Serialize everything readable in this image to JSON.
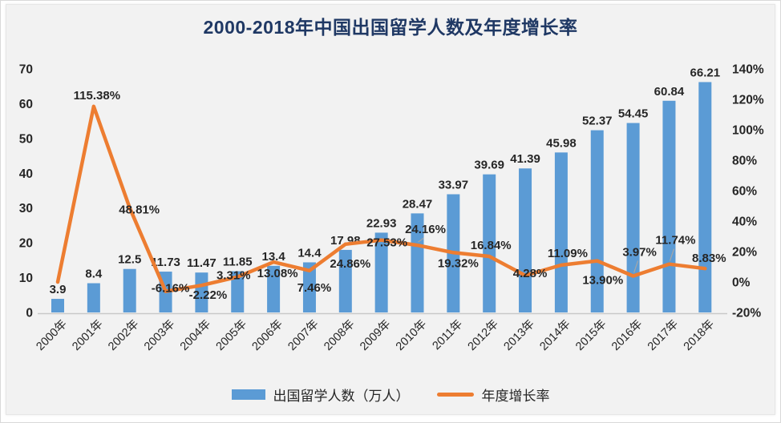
{
  "title": "2000-2018年中国出国留学人数及年度增长率",
  "legend": {
    "bars_label": "出国留学人数（万人）",
    "line_label": "年度增长率"
  },
  "colors": {
    "bar": "#5B9BD5",
    "line": "#ED7D31",
    "title": "#1F3864",
    "background": "#F2F2F2",
    "label_text": "#262626",
    "axis_line": "#C9C9C9",
    "leader_line": "#A6A6A6"
  },
  "chart_data": {
    "type": "combo (bar + line)",
    "title": "2000-2018年中国出国留学人数及年度增长率",
    "categories": [
      "2000年",
      "2001年",
      "2002年",
      "2003年",
      "2004年",
      "2005年",
      "2006年",
      "2007年",
      "2008年",
      "2009年",
      "2010年",
      "2011年",
      "2012年",
      "2013年",
      "2014年",
      "2015年",
      "2016年",
      "2017年",
      "2018年"
    ],
    "series": [
      {
        "name": "出国留学人数（万人）",
        "type": "bar",
        "axis": "left",
        "color": "#5B9BD5",
        "values": [
          3.9,
          8.4,
          12.5,
          11.73,
          11.47,
          11.85,
          13.4,
          14.4,
          17.98,
          22.93,
          28.47,
          33.97,
          39.69,
          41.39,
          45.98,
          52.37,
          54.45,
          60.84,
          66.21
        ],
        "labels": [
          "3.9",
          "8.4",
          "12.5",
          "11.73",
          "11.47",
          "11.85",
          "13.4",
          "14.4",
          "17.98",
          "22.93",
          "28.47",
          "33.97",
          "39.69",
          "41.39",
          "45.98",
          "52.37",
          "54.45",
          "60.84",
          "66.21"
        ]
      },
      {
        "name": "年度增长率",
        "type": "line",
        "axis": "right",
        "color": "#ED7D31",
        "values_percent": [
          0,
          115.38,
          48.81,
          -6.16,
          -2.22,
          3.31,
          13.08,
          7.46,
          24.86,
          27.53,
          24.16,
          19.32,
          16.84,
          4.28,
          11.09,
          13.9,
          3.97,
          11.74,
          8.83
        ],
        "labels": [
          "",
          "115.38%",
          "48.81%",
          "-6.16%",
          "-2.22%",
          "3.31%",
          "13.08%",
          "7.46%",
          "24.86%",
          "27.53%",
          "24.16%",
          "19.32%",
          "16.84%",
          "4.28%",
          "11.09%",
          "13.90%",
          "3.97%",
          "11.74%",
          "8.83%"
        ],
        "label_offsets": [
          [
            0,
            0
          ],
          [
            4,
            -14
          ],
          [
            12,
            2
          ],
          [
            6,
            -4
          ],
          [
            8,
            12
          ],
          [
            -5,
            -2
          ],
          [
            5,
            14
          ],
          [
            6,
            21
          ],
          [
            6,
            24
          ],
          [
            7,
            3
          ],
          [
            10,
            -20
          ],
          [
            6,
            13
          ],
          [
            2,
            -14
          ],
          [
            6,
            -3
          ],
          [
            8,
            -15
          ],
          [
            7,
            24
          ],
          [
            8,
            -30
          ],
          [
            8,
            -30
          ],
          [
            5,
            -13
          ]
        ],
        "leader_line_indices": [
          10,
          16,
          17
        ]
      }
    ],
    "left_axis": {
      "min": 0,
      "max": 70,
      "step": 10,
      "ticks": [
        "0",
        "10",
        "20",
        "30",
        "40",
        "50",
        "60",
        "70"
      ]
    },
    "right_axis": {
      "min": -20,
      "max": 140,
      "step": 20,
      "ticks": [
        "-20%",
        "0%",
        "20%",
        "40%",
        "60%",
        "80%",
        "100%",
        "120%",
        "140%"
      ]
    },
    "grid": false,
    "legend_position": "bottom"
  }
}
